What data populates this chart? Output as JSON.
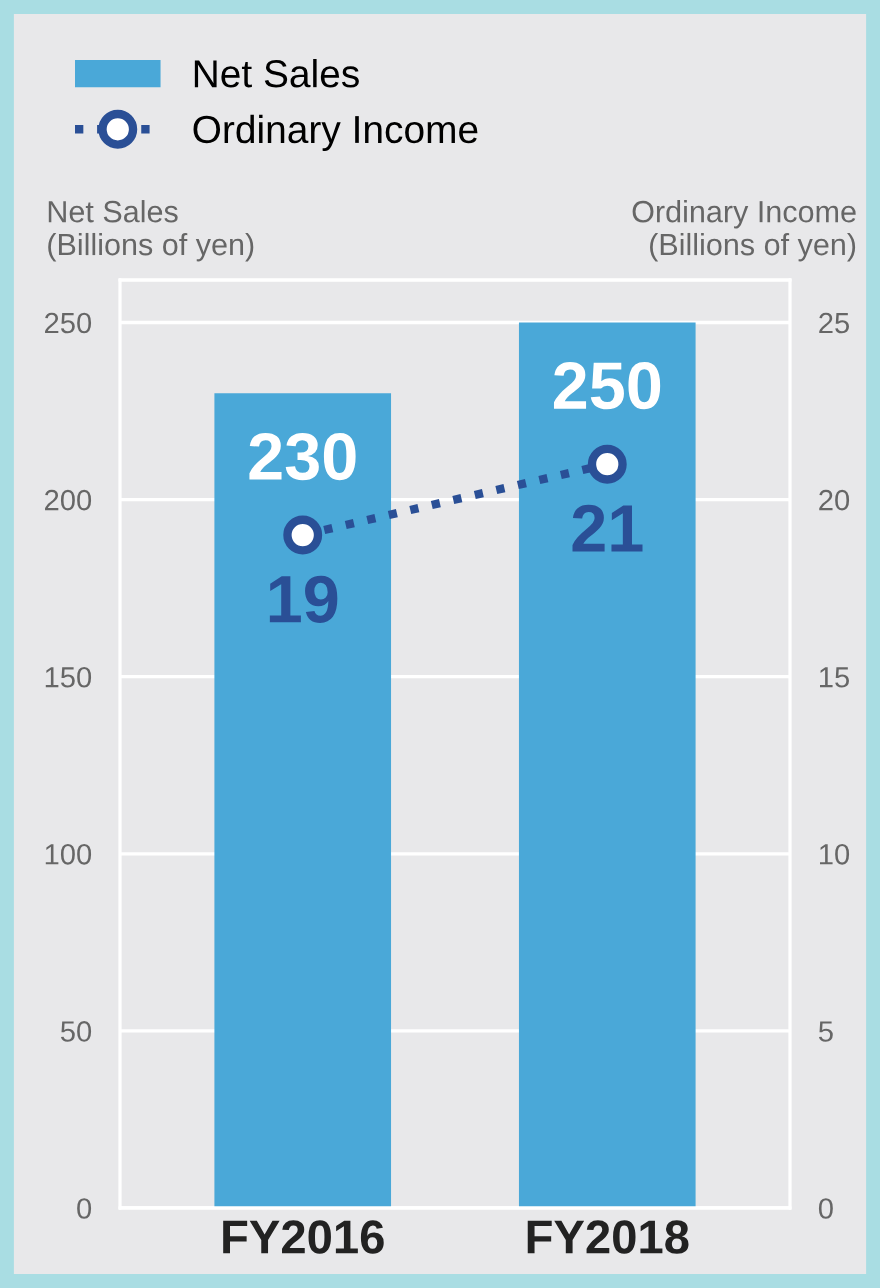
{
  "chart_data": {
    "type": "bar",
    "categories": [
      "FY2016",
      "FY2018"
    ],
    "ylabel": "Net Sales\n(Billions of yen)",
    "y2label": "Ordinary Income\n(Billions of yen)",
    "ylim": [
      0,
      262
    ],
    "yticks": [
      0,
      50,
      100,
      150,
      200,
      250
    ],
    "y2lim": [
      0,
      26.2
    ],
    "y2ticks": [
      0,
      5,
      10,
      15,
      20,
      25
    ],
    "series": [
      {
        "name": "Net Sales",
        "color": "#4aa8d8",
        "values": [
          230,
          250
        ]
      },
      {
        "name": "Ordinary Income",
        "type": "line",
        "axis": "y2",
        "color": "#2a4f96",
        "values": [
          19,
          21
        ],
        "marker": "circle",
        "line_style": "dotted"
      }
    ],
    "data_labels": true,
    "grid": "y",
    "legend": "top left"
  }
}
